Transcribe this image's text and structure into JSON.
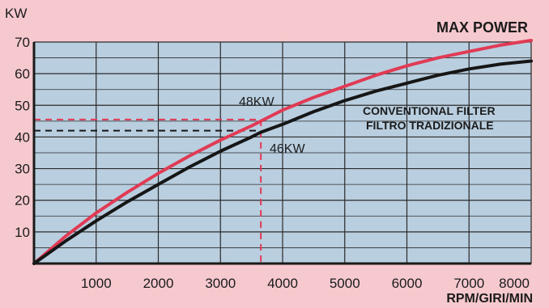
{
  "chart_data": {
    "type": "line",
    "title": "MAX POWER",
    "xlabel": "RPM/GIRI/MIN",
    "ylabel": "KW",
    "xlim": [
      0,
      8000
    ],
    "ylim": [
      0,
      70
    ],
    "x_ticks": [
      "1000",
      "2000",
      "3000",
      "4000",
      "5000",
      "6000",
      "7000",
      "8000"
    ],
    "y_ticks": [
      "10",
      "20",
      "30",
      "40",
      "50",
      "60",
      "70"
    ],
    "grid": true,
    "series": [
      {
        "color": "#e03a55",
        "x": [
          0,
          500,
          1000,
          1500,
          2000,
          2500,
          3000,
          3500,
          3650,
          4000,
          4500,
          5000,
          5500,
          6000,
          6500,
          7000,
          7500,
          8000
        ],
        "y": [
          0,
          8.5,
          16,
          22.5,
          28.5,
          34,
          39,
          43.5,
          45,
          48.5,
          52.5,
          56,
          59.5,
          62.5,
          65,
          67,
          69,
          70.5
        ]
      },
      {
        "color": "#161616",
        "x": [
          0,
          500,
          1000,
          1500,
          2000,
          2500,
          3000,
          3500,
          3650,
          4000,
          4500,
          5000,
          5500,
          6000,
          6500,
          7000,
          7500,
          8000
        ],
        "y": [
          0,
          7,
          13.5,
          19.5,
          25,
          30.5,
          35.5,
          40,
          41.5,
          44,
          48,
          51.5,
          54.5,
          57,
          59.5,
          61.5,
          63,
          64
        ]
      }
    ],
    "annotations": [
      {
        "text": "48KW"
      },
      {
        "text": "46KW"
      },
      {
        "text": "CONVENTIONAL FILTER"
      },
      {
        "text": "FILTRO TRADIZIONALE"
      }
    ],
    "marker_rpm": 3650,
    "marker_levels": [
      45.5,
      42
    ]
  }
}
